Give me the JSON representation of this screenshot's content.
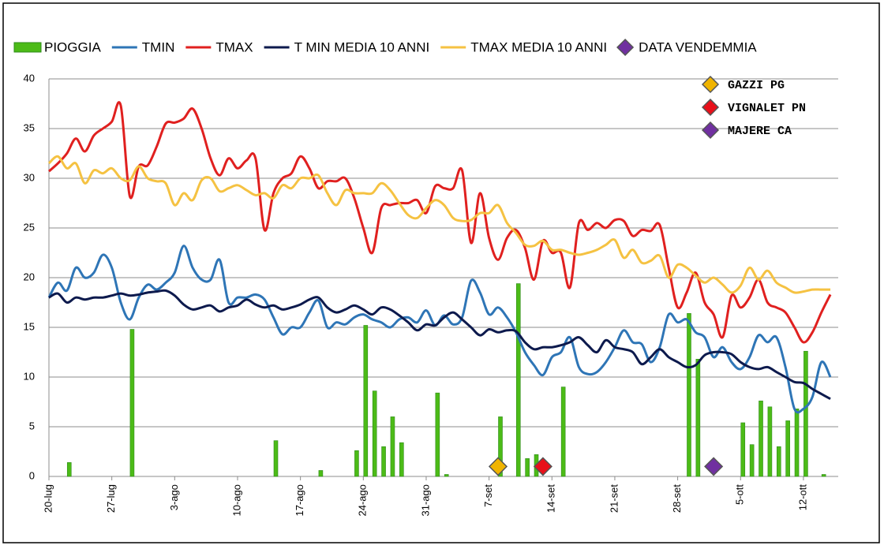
{
  "chart_data": {
    "type": "combo",
    "categories": [
      "20-lug",
      null,
      null,
      null,
      null,
      null,
      null,
      "27-lug",
      null,
      null,
      null,
      null,
      null,
      null,
      "3-ago",
      null,
      null,
      null,
      null,
      null,
      null,
      "10-ago",
      null,
      null,
      null,
      null,
      null,
      null,
      "17-ago",
      null,
      null,
      null,
      null,
      null,
      null,
      "24-ago",
      null,
      null,
      null,
      null,
      null,
      null,
      "31-ago",
      null,
      null,
      null,
      null,
      null,
      null,
      "7-set",
      null,
      null,
      null,
      null,
      null,
      null,
      "14-set",
      null,
      null,
      null,
      null,
      null,
      null,
      "21-set",
      null,
      null,
      null,
      null,
      null,
      null,
      "28-set",
      null,
      null,
      null,
      null,
      null,
      null,
      "5-ott",
      null,
      null,
      null,
      null,
      null,
      null,
      "12-ott",
      null,
      null,
      null
    ],
    "ylim": [
      0,
      40
    ],
    "yticks": [
      0,
      5,
      10,
      15,
      20,
      25,
      30,
      35,
      40
    ],
    "grid": true,
    "series": [
      {
        "name": "PIOGGIA",
        "type": "bar",
        "color": "#4cbb17",
        "values": [
          0,
          0,
          1.4,
          0,
          0,
          0,
          0,
          0,
          0,
          14.8,
          0,
          0,
          0,
          0,
          0,
          0,
          0,
          0,
          0,
          0,
          0,
          0,
          0,
          0,
          0,
          3.6,
          0,
          0,
          0,
          0,
          0.6,
          0,
          0,
          0,
          2.6,
          15.2,
          8.6,
          3,
          6,
          3.4,
          0,
          0,
          0,
          8.4,
          0.2,
          0,
          0,
          0,
          0,
          0,
          6,
          0,
          19.4,
          1.8,
          2.2,
          0,
          0,
          9,
          0,
          0,
          0,
          0,
          0,
          0,
          0,
          0,
          0,
          0,
          0,
          0,
          0,
          16.4,
          11.8,
          0,
          0,
          0,
          0,
          5.4,
          3.2,
          7.6,
          7,
          3,
          5.6,
          6.8,
          12.6,
          0,
          0.2,
          0
        ]
      },
      {
        "name": "TMIN",
        "type": "line",
        "color": "#2e75b6",
        "values": [
          18,
          19.5,
          18.7,
          21,
          20,
          20.5,
          22.3,
          21,
          17.5,
          15.8,
          18,
          19.3,
          18.8,
          19.5,
          20.5,
          23.2,
          21,
          19.8,
          19.8,
          21.8,
          17.5,
          18,
          18,
          18.3,
          17.8,
          16,
          14.3,
          15,
          15,
          16.5,
          17.7,
          15,
          15.5,
          15.3,
          16,
          16.3,
          15.8,
          15.5,
          15,
          15.8,
          16,
          15.5,
          16.7,
          15.2,
          16.2,
          15.3,
          16,
          19.7,
          18.5,
          16.3,
          17,
          16,
          14.5,
          12.5,
          11.2,
          10.2,
          12,
          12.5,
          14,
          11,
          10.3,
          10.5,
          11.5,
          13,
          14.7,
          13.5,
          13.3,
          11.5,
          13,
          16.3,
          15.5,
          15.8,
          14.5,
          14,
          12,
          13,
          11.5,
          10.8,
          12,
          14.2,
          13.5,
          14,
          11,
          6.8,
          6.8,
          8,
          11.5,
          10
        ]
      },
      {
        "name": "TMAX",
        "type": "line",
        "color": "#e0201f",
        "values": [
          30.7,
          31.5,
          32.5,
          34,
          32.7,
          34.3,
          35,
          35.7,
          37.3,
          28.2,
          31.2,
          31.3,
          33.2,
          35.5,
          35.6,
          36,
          37,
          35,
          32,
          30.3,
          32,
          31,
          31.8,
          32,
          24.8,
          28.5,
          30,
          30.5,
          32.2,
          31,
          29,
          29.7,
          29.7,
          30,
          28,
          25,
          22.5,
          27,
          27.3,
          27.5,
          27.5,
          27.8,
          26.5,
          29.2,
          29,
          29,
          30.8,
          23.5,
          28.5,
          24,
          21.8,
          24,
          24.8,
          23,
          19.8,
          23.7,
          22.5,
          22.5,
          19,
          25.5,
          24.8,
          25.5,
          25,
          25.8,
          25.7,
          24.2,
          24.8,
          24.7,
          25.3,
          21,
          17,
          18.5,
          20.5,
          17.5,
          16.3,
          14,
          18.2,
          17,
          18,
          19.8,
          17.5,
          17,
          16.5,
          15,
          13.5,
          14.5,
          16.5,
          18.3
        ]
      },
      {
        "name": "T MIN MEDIA 10 ANNI",
        "type": "line",
        "color": "#0d1a4d",
        "values": [
          18,
          18.4,
          17.5,
          18,
          17.8,
          18,
          18,
          18.2,
          18.4,
          18.2,
          18.3,
          18.5,
          18.6,
          18.7,
          18.2,
          17.3,
          16.8,
          17,
          17.2,
          16.6,
          17,
          17.2,
          17.8,
          17.3,
          17,
          17.2,
          16.8,
          17,
          17.3,
          17.8,
          18,
          17,
          16.5,
          16.8,
          17.2,
          16.8,
          16.3,
          17,
          16.8,
          16.2,
          15.5,
          14.7,
          15.3,
          15.2,
          16,
          16.5,
          15.8,
          15,
          14.2,
          14.8,
          14.5,
          14.7,
          14.6,
          13.5,
          12.8,
          13,
          13,
          13.2,
          13.5,
          14,
          13.2,
          12.5,
          13.7,
          13,
          12.8,
          12.5,
          11.3,
          12,
          12.8,
          12,
          11.5,
          11,
          11.2,
          12.2,
          12.5,
          12.5,
          12.3,
          11.5,
          11,
          10.8,
          11,
          10.5,
          10,
          9.5,
          9.4,
          8.8,
          8.3,
          7.8
        ]
      },
      {
        "name": "TMAX MEDIA 10 ANNI",
        "type": "line",
        "color": "#f5c242",
        "values": [
          31.5,
          32.2,
          31,
          31.5,
          29.5,
          30.8,
          30.5,
          31,
          30,
          29.8,
          31.2,
          30,
          29.7,
          29.5,
          27.3,
          28.5,
          27.8,
          29.8,
          30,
          28.7,
          29,
          29.3,
          28.8,
          28.3,
          28.5,
          28,
          29.3,
          29,
          30,
          30,
          30.3,
          28.5,
          27.3,
          28.8,
          28.5,
          28.5,
          28.5,
          29.5,
          28.8,
          27.5,
          26.3,
          26,
          27,
          27.8,
          27.3,
          26,
          25.7,
          25.8,
          26.5,
          26.5,
          27.3,
          25.5,
          24.5,
          23.3,
          23.2,
          23.7,
          22.8,
          22.8,
          22.5,
          22.3,
          22.5,
          22.8,
          23.3,
          23.8,
          22,
          22.8,
          21.5,
          21.7,
          22.2,
          20,
          21.3,
          21,
          20.2,
          19.5,
          20,
          19.3,
          18.5,
          19.2,
          21,
          19.8,
          20.7,
          19.5,
          19,
          18.5,
          18.6,
          18.8,
          18.8,
          18.8
        ]
      }
    ],
    "harvest": {
      "name": "DATA VENDEMMIA",
      "color": "#7030a0",
      "markers": [
        {
          "name": "GAZZI PG",
          "color": "#f0b400",
          "x": 50,
          "y": 1
        },
        {
          "name": "VIGNALET PN",
          "color": "#e8101a",
          "x": 55,
          "y": 1
        },
        {
          "name": "MAJERE CA",
          "color": "#7030a0",
          "x": 74,
          "y": 1
        }
      ]
    }
  }
}
